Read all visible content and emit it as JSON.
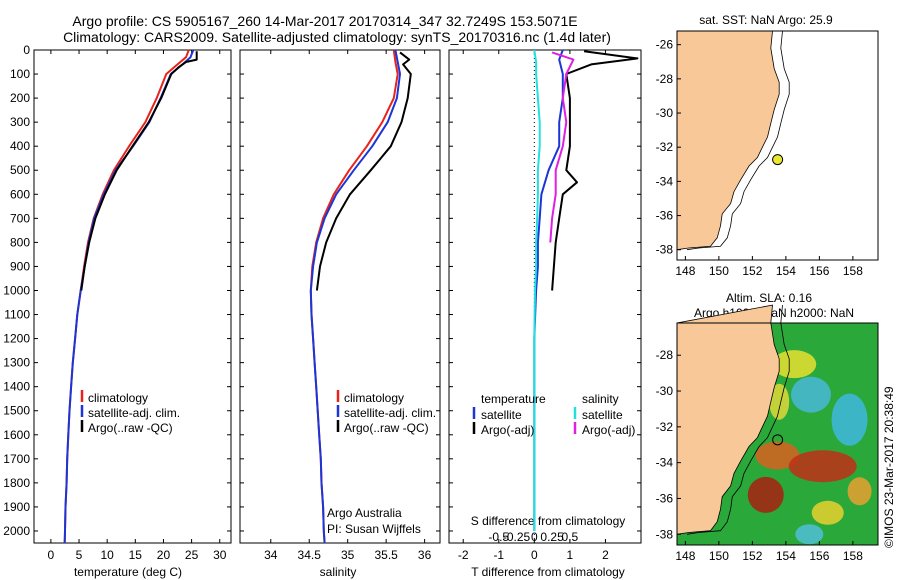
{
  "header": {
    "title_line1": "Argo profile: CS 5905167_260 14-Mar-2017 20170314_347 32.7249S 153.5071E",
    "title_line2": "Climatology: CARS2009. Satellite-adjusted climatology: synTS_20170316.nc (1.4d later)"
  },
  "colors": {
    "climatology": "#e8231c",
    "satellite": "#1b35d6",
    "argo": "#000000",
    "sat_salinity": "#20e0e0",
    "argo_salinity": "#e020e0",
    "land": "#f8c898",
    "ocean_bg": "#ffffff"
  },
  "labels": {
    "temp_xlabel": "temperature (deg C)",
    "sal_xlabel": "salinity",
    "diff_xlabel_T": "T difference from climatology",
    "diff_xlabel_S": "S difference from climatology",
    "argo_australia": "Argo Australia",
    "pi_name": "PI: Susan Wijffels",
    "sst_title": "sat. SST: NaN Argo: 25.9",
    "sla_title1": "Altim. SLA: 0.16",
    "sla_title2": "Argo h1000: NaN h2000: NaN",
    "imos_stamp": "©IMOS 23-Mar-2017 20:38:49"
  },
  "legend_profiles": [
    "climatology",
    "satellite-adj. clim.",
    "Argo(..raw -QC)"
  ],
  "legend_diff": {
    "temperature_head": "temperature",
    "salinity_head": "salinity",
    "t_items": [
      "satellite",
      "Argo(-adj)"
    ],
    "s_items": [
      "satellite",
      "Argo(-adj)"
    ]
  },
  "chart_data": [
    {
      "type": "line",
      "panel": "temperature",
      "xlabel": "temperature (deg C)",
      "ylabel": "",
      "xlim": [
        -3,
        32
      ],
      "ylim": [
        2050,
        0
      ],
      "xticks": [
        0,
        5,
        10,
        15,
        20,
        25,
        30
      ],
      "yticks": [
        0,
        100,
        200,
        300,
        400,
        500,
        600,
        700,
        800,
        900,
        1000,
        1100,
        1200,
        1300,
        1400,
        1500,
        1600,
        1700,
        1800,
        1900,
        2000
      ],
      "series": [
        {
          "name": "climatology",
          "color": "#e8231c",
          "points": [
            [
              24.5,
              0
            ],
            [
              24.0,
              30
            ],
            [
              22.5,
              60
            ],
            [
              20.5,
              100
            ],
            [
              18.8,
              200
            ],
            [
              16.8,
              300
            ],
            [
              13.9,
              400
            ],
            [
              11.2,
              500
            ],
            [
              9.2,
              600
            ],
            [
              7.6,
              700
            ],
            [
              6.6,
              800
            ],
            [
              5.9,
              900
            ],
            [
              5.3,
              1000
            ],
            [
              4.7,
              1100
            ],
            [
              4.3,
              1200
            ],
            [
              3.9,
              1300
            ],
            [
              3.6,
              1400
            ],
            [
              3.3,
              1500
            ],
            [
              3.1,
              1600
            ],
            [
              2.9,
              1700
            ],
            [
              2.8,
              1800
            ],
            [
              2.6,
              1900
            ],
            [
              2.5,
              2000
            ],
            [
              2.45,
              2050
            ]
          ]
        },
        {
          "name": "satellite-adj. clim.",
          "color": "#1b35d6",
          "points": [
            [
              25.3,
              0
            ],
            [
              24.8,
              30
            ],
            [
              23.4,
              60
            ],
            [
              21.3,
              100
            ],
            [
              19.5,
              200
            ],
            [
              17.5,
              300
            ],
            [
              14.6,
              400
            ],
            [
              11.5,
              500
            ],
            [
              9.4,
              600
            ],
            [
              7.7,
              700
            ],
            [
              6.7,
              800
            ],
            [
              6.0,
              900
            ],
            [
              5.3,
              1000
            ],
            [
              4.7,
              1100
            ],
            [
              4.3,
              1200
            ],
            [
              3.9,
              1300
            ],
            [
              3.6,
              1400
            ],
            [
              3.3,
              1500
            ],
            [
              3.1,
              1600
            ],
            [
              2.9,
              1700
            ],
            [
              2.8,
              1800
            ],
            [
              2.6,
              1900
            ],
            [
              2.5,
              2000
            ],
            [
              2.45,
              2050
            ]
          ]
        },
        {
          "name": "Argo(..raw -QC)",
          "color": "#000000",
          "points": [
            [
              25.9,
              5
            ],
            [
              25.9,
              40
            ],
            [
              24.0,
              50
            ],
            [
              22.8,
              70
            ],
            [
              21.4,
              100
            ],
            [
              19.6,
              200
            ],
            [
              17.4,
              300
            ],
            [
              14.5,
              400
            ],
            [
              11.7,
              500
            ],
            [
              9.6,
              600
            ],
            [
              7.9,
              700
            ],
            [
              6.8,
              800
            ],
            [
              6.0,
              900
            ],
            [
              5.4,
              1000
            ]
          ]
        }
      ]
    },
    {
      "type": "line",
      "panel": "salinity",
      "xlabel": "salinity",
      "xlim": [
        33.6,
        36.2
      ],
      "ylim": [
        2050,
        0
      ],
      "xticks": [
        34,
        34.5,
        35,
        35.5,
        36
      ],
      "series": [
        {
          "name": "climatology",
          "color": "#e8231c",
          "points": [
            [
              35.6,
              0
            ],
            [
              35.62,
              50
            ],
            [
              35.65,
              100
            ],
            [
              35.6,
              200
            ],
            [
              35.45,
              300
            ],
            [
              35.25,
              400
            ],
            [
              35.02,
              500
            ],
            [
              34.82,
              600
            ],
            [
              34.68,
              700
            ],
            [
              34.59,
              800
            ],
            [
              34.54,
              900
            ],
            [
              34.52,
              1000
            ],
            [
              34.53,
              1100
            ],
            [
              34.55,
              1200
            ],
            [
              34.57,
              1300
            ],
            [
              34.59,
              1400
            ],
            [
              34.61,
              1500
            ],
            [
              34.63,
              1600
            ],
            [
              34.65,
              1700
            ],
            [
              34.66,
              1800
            ],
            [
              34.68,
              1900
            ],
            [
              34.69,
              2000
            ],
            [
              34.7,
              2050
            ]
          ]
        },
        {
          "name": "satellite-adj. clim.",
          "color": "#1b35d6",
          "points": [
            [
              35.62,
              0
            ],
            [
              35.65,
              50
            ],
            [
              35.68,
              100
            ],
            [
              35.64,
              200
            ],
            [
              35.52,
              300
            ],
            [
              35.32,
              400
            ],
            [
              35.08,
              500
            ],
            [
              34.85,
              600
            ],
            [
              34.7,
              700
            ],
            [
              34.6,
              800
            ],
            [
              34.55,
              900
            ],
            [
              34.52,
              1000
            ],
            [
              34.53,
              1100
            ],
            [
              34.55,
              1200
            ],
            [
              34.57,
              1300
            ],
            [
              34.59,
              1400
            ],
            [
              34.61,
              1500
            ],
            [
              34.63,
              1600
            ],
            [
              34.65,
              1700
            ],
            [
              34.66,
              1800
            ],
            [
              34.68,
              1900
            ],
            [
              34.69,
              2000
            ],
            [
              34.7,
              2050
            ]
          ]
        },
        {
          "name": "Argo(..raw -QC)",
          "color": "#000000",
          "points": [
            [
              35.68,
              10
            ],
            [
              35.8,
              40
            ],
            [
              35.72,
              60
            ],
            [
              35.82,
              100
            ],
            [
              35.78,
              200
            ],
            [
              35.7,
              300
            ],
            [
              35.56,
              400
            ],
            [
              35.3,
              500
            ],
            [
              35.03,
              600
            ],
            [
              34.85,
              700
            ],
            [
              34.72,
              800
            ],
            [
              34.64,
              900
            ],
            [
              34.6,
              1000
            ]
          ]
        }
      ]
    },
    {
      "type": "line",
      "panel": "differences",
      "xlabel": "T difference from climatology",
      "x2label": "S difference from climatology",
      "xlim": [
        -2.4,
        3.0
      ],
      "ylim": [
        2050,
        0
      ],
      "xticks": [
        -2,
        -1,
        0,
        1,
        2
      ],
      "x2ticks": [
        -0.5,
        -0.25,
        0,
        0.25,
        0.5
      ],
      "series": [
        {
          "name": "temperature satellite",
          "color": "#1b35d6",
          "points": [
            [
              0.8,
              0
            ],
            [
              0.7,
              40
            ],
            [
              0.8,
              100
            ],
            [
              0.8,
              200
            ],
            [
              0.7,
              300
            ],
            [
              0.7,
              400
            ],
            [
              0.4,
              500
            ],
            [
              0.2,
              600
            ],
            [
              0.15,
              700
            ],
            [
              0.1,
              800
            ],
            [
              0.1,
              900
            ],
            [
              0.05,
              1000
            ],
            [
              0.0,
              1200
            ],
            [
              0.0,
              2000
            ]
          ]
        },
        {
          "name": "temperature Argo(-adj)",
          "color": "#000000",
          "points": [
            [
              1.4,
              5
            ],
            [
              2.9,
              35
            ],
            [
              1.6,
              60
            ],
            [
              0.9,
              100
            ],
            [
              1.0,
              200
            ],
            [
              1.0,
              300
            ],
            [
              1.0,
              400
            ],
            [
              0.9,
              500
            ],
            [
              1.2,
              550
            ],
            [
              0.8,
              600
            ],
            [
              0.7,
              700
            ],
            [
              0.6,
              800
            ],
            [
              0.55,
              900
            ],
            [
              0.5,
              1000
            ]
          ]
        },
        {
          "name": "salinity satellite",
          "color": "#20e0e0",
          "points": [
            [
              0.0,
              0
            ],
            [
              0.05,
              50
            ],
            [
              0.05,
              100
            ],
            [
              0.1,
              200
            ],
            [
              0.15,
              300
            ],
            [
              0.15,
              400
            ],
            [
              0.1,
              500
            ],
            [
              0.1,
              600
            ],
            [
              0.08,
              700
            ],
            [
              0.05,
              800
            ],
            [
              0.05,
              900
            ],
            [
              0.02,
              1000
            ],
            [
              0.0,
              1200
            ],
            [
              0.0,
              2000
            ]
          ]
        },
        {
          "name": "salinity Argo(-adj)",
          "color": "#e020e0",
          "points": [
            [
              0.5,
              10
            ],
            [
              1.1,
              40
            ],
            [
              0.9,
              100
            ],
            [
              0.8,
              200
            ],
            [
              0.9,
              300
            ],
            [
              0.8,
              400
            ],
            [
              0.6,
              500
            ],
            [
              0.6,
              600
            ],
            [
              0.5,
              700
            ],
            [
              0.45,
              800
            ]
          ]
        }
      ]
    },
    {
      "type": "map",
      "panel": "sst",
      "title": "sat. SST: NaN Argo: 25.9",
      "xlim": [
        147.5,
        159.5
      ],
      "ylim": [
        -38.6,
        -25.2
      ],
      "xticks": [
        148,
        150,
        152,
        154,
        156,
        158
      ],
      "yticks": [
        -26,
        -28,
        -30,
        -32,
        -34,
        -36,
        -38
      ],
      "float_position": [
        153.5071,
        -32.7249
      ]
    },
    {
      "type": "heatmap",
      "panel": "sla",
      "title": "Altim. SLA: 0.16 Argo h1000: NaN h2000: NaN",
      "xlim": [
        147.5,
        159.5
      ],
      "ylim": [
        -38.6,
        -26.2
      ],
      "xticks": [
        148,
        150,
        152,
        154,
        156,
        158
      ],
      "yticks": [
        -28,
        -30,
        -32,
        -34,
        -36,
        -38
      ],
      "float_position": [
        153.5071,
        -32.7249
      ]
    }
  ]
}
